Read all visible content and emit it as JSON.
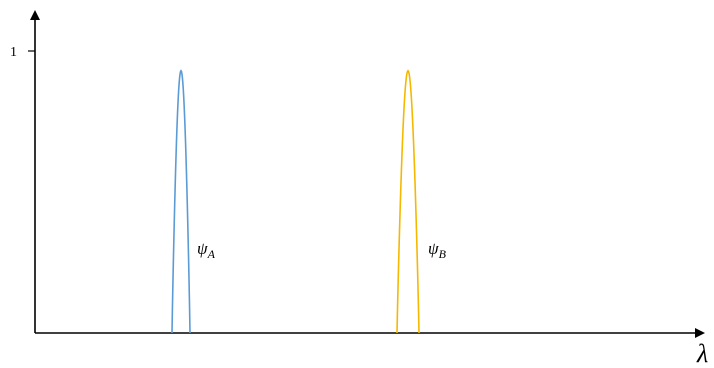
{
  "chart_data": {
    "type": "line",
    "xlabel": "λ",
    "y_ticks": [
      {
        "value": 1,
        "label": "1"
      }
    ],
    "ylim": [
      0,
      1
    ],
    "colors": {
      "axis": "#000000",
      "psi_A": "#5b9bd5",
      "psi_B": "#f5b800"
    },
    "series": [
      {
        "name_main": "ψ",
        "name_sub": "A",
        "color": "#5b9bd5",
        "peak": 0.93
      },
      {
        "name_main": "ψ",
        "name_sub": "B",
        "color": "#f5b800",
        "peak": 0.93
      }
    ]
  }
}
